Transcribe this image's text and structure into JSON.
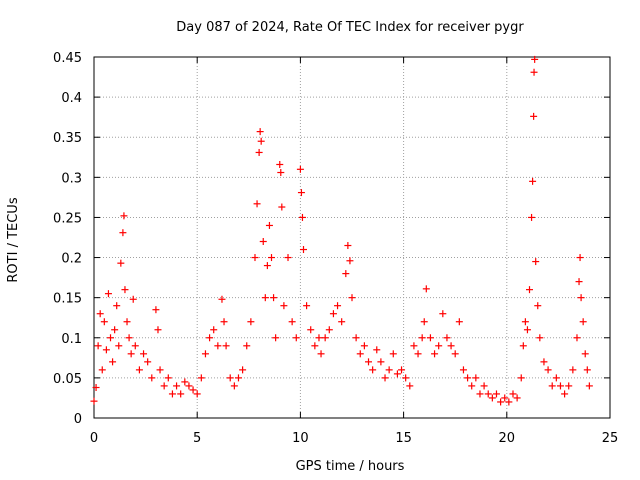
{
  "chart_data": {
    "type": "scatter",
    "title": "Day 087 of 2024, Rate Of TEC Index for receiver pygr",
    "xlabel": "GPS time / hours",
    "ylabel": "ROTI / TECUs",
    "xlim": [
      0,
      25
    ],
    "ylim": [
      0,
      0.45
    ],
    "xticks": [
      "0",
      "5",
      "10",
      "15",
      "20",
      "25"
    ],
    "yticks": [
      "0",
      "0.05",
      "0.1",
      "0.15",
      "0.2",
      "0.25",
      "0.3",
      "0.35",
      "0.4",
      "0.45"
    ],
    "grid": true,
    "marker": "+",
    "color": "#ff0000",
    "series": [
      {
        "points": [
          [
            0.0,
            0.021
          ],
          [
            0.1,
            0.038
          ],
          [
            0.2,
            0.09
          ],
          [
            0.3,
            0.13
          ],
          [
            0.4,
            0.06
          ],
          [
            0.5,
            0.12
          ],
          [
            0.6,
            0.085
          ],
          [
            0.7,
            0.155
          ],
          [
            0.8,
            0.1
          ],
          [
            0.9,
            0.07
          ],
          [
            1.0,
            0.11
          ],
          [
            1.1,
            0.14
          ],
          [
            1.2,
            0.09
          ],
          [
            1.3,
            0.193
          ],
          [
            1.4,
            0.231
          ],
          [
            1.45,
            0.252
          ],
          [
            1.5,
            0.16
          ],
          [
            1.6,
            0.12
          ],
          [
            1.7,
            0.1
          ],
          [
            1.8,
            0.08
          ],
          [
            1.9,
            0.148
          ],
          [
            2.0,
            0.09
          ],
          [
            2.2,
            0.06
          ],
          [
            2.4,
            0.08
          ],
          [
            2.6,
            0.07
          ],
          [
            2.8,
            0.05
          ],
          [
            3.0,
            0.135
          ],
          [
            3.1,
            0.11
          ],
          [
            3.2,
            0.06
          ],
          [
            3.4,
            0.04
          ],
          [
            3.6,
            0.05
          ],
          [
            3.8,
            0.03
          ],
          [
            4.0,
            0.04
          ],
          [
            4.2,
            0.03
          ],
          [
            4.4,
            0.045
          ],
          [
            4.6,
            0.04
          ],
          [
            4.8,
            0.035
          ],
          [
            5.0,
            0.03
          ],
          [
            5.2,
            0.05
          ],
          [
            5.4,
            0.08
          ],
          [
            5.6,
            0.1
          ],
          [
            5.8,
            0.11
          ],
          [
            6.0,
            0.09
          ],
          [
            6.2,
            0.148
          ],
          [
            6.3,
            0.12
          ],
          [
            6.4,
            0.09
          ],
          [
            6.6,
            0.05
          ],
          [
            6.8,
            0.04
          ],
          [
            7.0,
            0.05
          ],
          [
            7.2,
            0.06
          ],
          [
            7.4,
            0.09
          ],
          [
            7.6,
            0.12
          ],
          [
            7.8,
            0.2
          ],
          [
            7.9,
            0.267
          ],
          [
            8.0,
            0.331
          ],
          [
            8.05,
            0.357
          ],
          [
            8.1,
            0.345
          ],
          [
            8.2,
            0.22
          ],
          [
            8.3,
            0.15
          ],
          [
            8.4,
            0.19
          ],
          [
            8.5,
            0.24
          ],
          [
            8.6,
            0.2
          ],
          [
            8.7,
            0.15
          ],
          [
            8.8,
            0.1
          ],
          [
            9.0,
            0.316
          ],
          [
            9.05,
            0.306
          ],
          [
            9.1,
            0.263
          ],
          [
            9.2,
            0.14
          ],
          [
            9.4,
            0.2
          ],
          [
            9.6,
            0.12
          ],
          [
            9.8,
            0.1
          ],
          [
            10.0,
            0.31
          ],
          [
            10.05,
            0.281
          ],
          [
            10.1,
            0.25
          ],
          [
            10.15,
            0.21
          ],
          [
            10.3,
            0.14
          ],
          [
            10.5,
            0.11
          ],
          [
            10.7,
            0.09
          ],
          [
            10.9,
            0.1
          ],
          [
            11.0,
            0.08
          ],
          [
            11.2,
            0.1
          ],
          [
            11.4,
            0.11
          ],
          [
            11.6,
            0.13
          ],
          [
            11.8,
            0.14
          ],
          [
            12.0,
            0.12
          ],
          [
            12.2,
            0.18
          ],
          [
            12.3,
            0.215
          ],
          [
            12.4,
            0.196
          ],
          [
            12.5,
            0.15
          ],
          [
            12.7,
            0.1
          ],
          [
            12.9,
            0.08
          ],
          [
            13.1,
            0.09
          ],
          [
            13.3,
            0.07
          ],
          [
            13.5,
            0.06
          ],
          [
            13.7,
            0.085
          ],
          [
            13.9,
            0.07
          ],
          [
            14.1,
            0.05
          ],
          [
            14.3,
            0.06
          ],
          [
            14.5,
            0.08
          ],
          [
            14.7,
            0.055
          ],
          [
            14.9,
            0.06
          ],
          [
            15.1,
            0.05
          ],
          [
            15.3,
            0.04
          ],
          [
            15.5,
            0.09
          ],
          [
            15.7,
            0.08
          ],
          [
            15.9,
            0.1
          ],
          [
            16.0,
            0.12
          ],
          [
            16.1,
            0.161
          ],
          [
            16.3,
            0.1
          ],
          [
            16.5,
            0.08
          ],
          [
            16.7,
            0.09
          ],
          [
            16.9,
            0.13
          ],
          [
            17.1,
            0.1
          ],
          [
            17.3,
            0.09
          ],
          [
            17.5,
            0.08
          ],
          [
            17.7,
            0.12
          ],
          [
            17.9,
            0.06
          ],
          [
            18.1,
            0.05
          ],
          [
            18.3,
            0.04
          ],
          [
            18.5,
            0.05
          ],
          [
            18.7,
            0.03
          ],
          [
            18.9,
            0.04
          ],
          [
            19.1,
            0.03
          ],
          [
            19.3,
            0.025
          ],
          [
            19.5,
            0.03
          ],
          [
            19.7,
            0.02
          ],
          [
            19.9,
            0.025
          ],
          [
            20.1,
            0.02
          ],
          [
            20.3,
            0.03
          ],
          [
            20.5,
            0.025
          ],
          [
            20.7,
            0.05
          ],
          [
            20.8,
            0.09
          ],
          [
            20.9,
            0.12
          ],
          [
            21.0,
            0.11
          ],
          [
            21.1,
            0.16
          ],
          [
            21.2,
            0.25
          ],
          [
            21.25,
            0.295
          ],
          [
            21.3,
            0.376
          ],
          [
            21.32,
            0.431
          ],
          [
            21.35,
            0.447
          ],
          [
            21.4,
            0.195
          ],
          [
            21.5,
            0.14
          ],
          [
            21.6,
            0.1
          ],
          [
            21.8,
            0.07
          ],
          [
            22.0,
            0.06
          ],
          [
            22.2,
            0.04
          ],
          [
            22.4,
            0.05
          ],
          [
            22.6,
            0.04
          ],
          [
            22.8,
            0.03
          ],
          [
            23.0,
            0.04
          ],
          [
            23.2,
            0.06
          ],
          [
            23.4,
            0.1
          ],
          [
            23.5,
            0.17
          ],
          [
            23.55,
            0.2
          ],
          [
            23.6,
            0.15
          ],
          [
            23.7,
            0.12
          ],
          [
            23.8,
            0.08
          ],
          [
            23.9,
            0.06
          ],
          [
            24.0,
            0.04
          ]
        ]
      }
    ]
  }
}
